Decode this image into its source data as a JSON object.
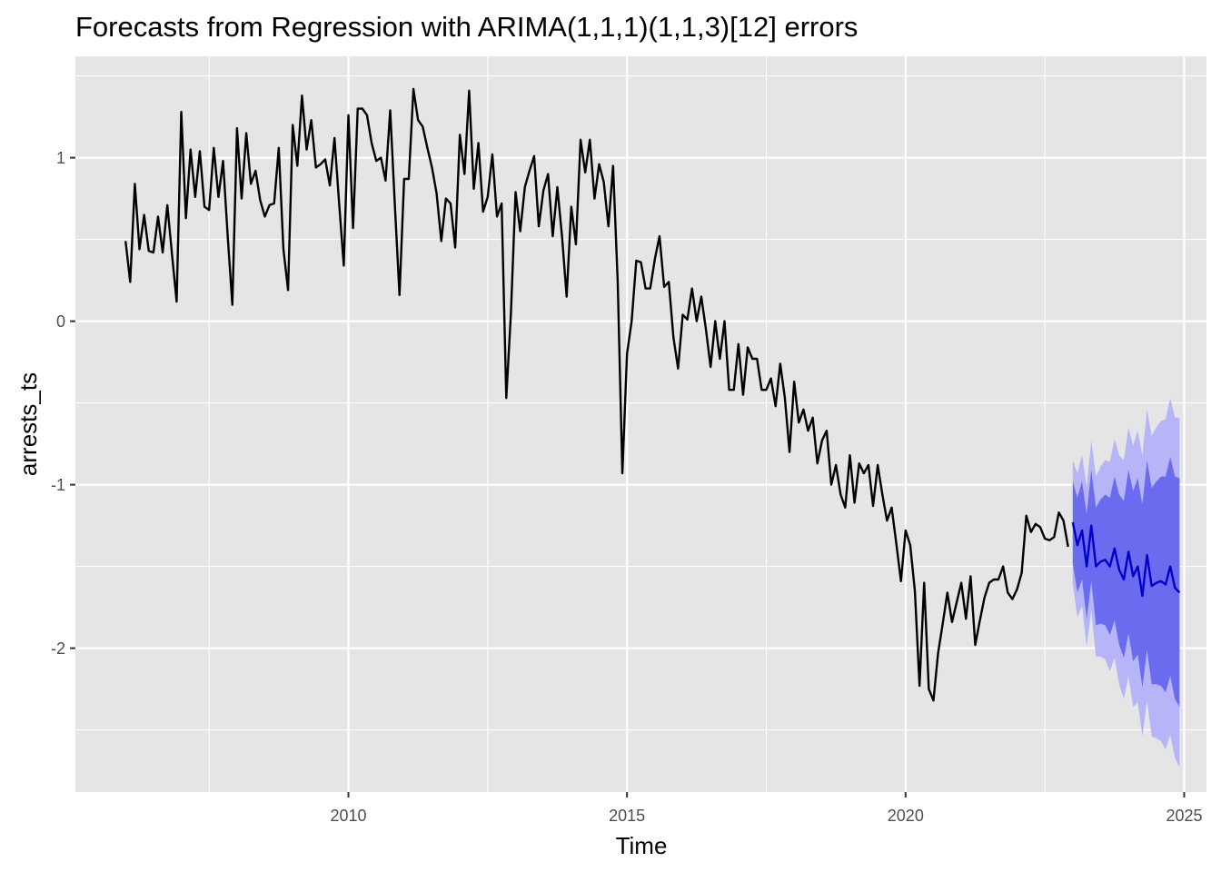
{
  "chart_data": {
    "type": "line",
    "title": "Forecasts from Regression with ARIMA(1,1,1)(1,1,3)[12] errors",
    "xlabel": "Time",
    "ylabel": "arrests_ts",
    "xlim": [
      2005.1,
      2025.4
    ],
    "ylim": [
      -2.88,
      1.62
    ],
    "x_ticks": [
      2010,
      2015,
      2020,
      2025
    ],
    "x_tick_labels": [
      "2010",
      "2015",
      "2020",
      "2025"
    ],
    "x_minor_ticks": [
      2007.5,
      2012.5,
      2017.5,
      2022.5
    ],
    "y_ticks": [
      1,
      0,
      -1,
      -2
    ],
    "y_tick_labels": [
      "1",
      "0",
      "-1",
      "-2"
    ],
    "y_minor_ticks": [
      1.5,
      0.5,
      -0.5,
      -1.5,
      -2.5
    ],
    "grid": true,
    "panel_background": "#e5e5e5",
    "grid_color": "#ffffff",
    "colors": {
      "history": "#000000",
      "forecast": "#0000cc",
      "interval_80": "#6b6bef",
      "interval_95": "#b5b5f7"
    },
    "start": 2006.0,
    "frequency": 12,
    "history": [
      0.49,
      0.24,
      0.84,
      0.44,
      0.65,
      0.43,
      0.42,
      0.64,
      0.42,
      0.71,
      0.41,
      0.12,
      1.28,
      0.63,
      1.05,
      0.76,
      1.04,
      0.7,
      0.68,
      1.06,
      0.76,
      0.98,
      0.52,
      0.1,
      1.18,
      0.75,
      1.15,
      0.84,
      0.92,
      0.74,
      0.64,
      0.71,
      0.72,
      1.06,
      0.44,
      0.19,
      1.2,
      0.95,
      1.38,
      1.05,
      1.23,
      0.94,
      0.96,
      0.99,
      0.83,
      1.12,
      0.72,
      0.34,
      1.26,
      0.57,
      1.3,
      1.3,
      1.26,
      1.09,
      0.98,
      1.0,
      0.86,
      1.29,
      0.71,
      0.16,
      0.87,
      0.87,
      1.42,
      1.23,
      1.19,
      1.06,
      0.94,
      0.78,
      0.49,
      0.75,
      0.72,
      0.45,
      1.14,
      0.9,
      1.41,
      0.81,
      1.09,
      0.67,
      0.76,
      1.02,
      0.64,
      0.72,
      -0.47,
      0.05,
      0.79,
      0.55,
      0.82,
      0.92,
      1.01,
      0.58,
      0.8,
      0.9,
      0.52,
      0.82,
      0.52,
      0.15,
      0.7,
      0.47,
      1.11,
      0.91,
      1.11,
      0.75,
      0.96,
      0.85,
      0.58,
      0.95,
      0.24,
      -0.93,
      -0.2,
      0.0,
      0.37,
      0.36,
      0.2,
      0.2,
      0.38,
      0.52,
      0.21,
      0.24,
      -0.1,
      -0.29,
      0.04,
      0.01,
      0.2,
      0.0,
      0.15,
      -0.05,
      -0.28,
      0.0,
      -0.23,
      0.0,
      -0.42,
      -0.42,
      -0.14,
      -0.45,
      -0.16,
      -0.23,
      -0.23,
      -0.42,
      -0.42,
      -0.35,
      -0.52,
      -0.26,
      -0.47,
      -0.8,
      -0.37,
      -0.62,
      -0.54,
      -0.67,
      -0.59,
      -0.87,
      -0.73,
      -0.67,
      -1.0,
      -0.88,
      -1.06,
      -1.14,
      -0.82,
      -1.11,
      -0.87,
      -0.93,
      -0.88,
      -1.13,
      -0.88,
      -1.06,
      -1.22,
      -1.14,
      -1.36,
      -1.59,
      -1.28,
      -1.37,
      -1.65,
      -2.23,
      -1.6,
      -2.25,
      -2.32,
      -2.03,
      -1.85,
      -1.66,
      -1.84,
      -1.72,
      -1.6,
      -1.82,
      -1.56,
      -1.98,
      -1.83,
      -1.69,
      -1.6,
      -1.58,
      -1.58,
      -1.5,
      -1.66,
      -1.7,
      -1.64,
      -1.54,
      -1.19,
      -1.29,
      -1.24,
      -1.26,
      -1.33,
      -1.34,
      -1.32,
      -1.17,
      -1.22,
      -1.38
    ],
    "forecast_start": 2023.0,
    "forecast": [
      -1.23,
      -1.37,
      -1.28,
      -1.5,
      -1.25,
      -1.5,
      -1.47,
      -1.46,
      -1.5,
      -1.39,
      -1.52,
      -1.58,
      -1.41,
      -1.56,
      -1.5,
      -1.68,
      -1.43,
      -1.62,
      -1.6,
      -1.59,
      -1.61,
      -1.5,
      -1.63,
      -1.66
    ],
    "lo80": [
      -1.48,
      -1.66,
      -1.58,
      -1.82,
      -1.59,
      -1.86,
      -1.85,
      -1.86,
      -1.92,
      -1.83,
      -1.98,
      -2.06,
      -1.91,
      -2.08,
      -2.04,
      -2.24,
      -2.01,
      -2.22,
      -2.22,
      -2.23,
      -2.27,
      -2.17,
      -2.31,
      -2.36
    ],
    "hi80": [
      -0.98,
      -1.08,
      -0.98,
      -1.18,
      -0.91,
      -1.14,
      -1.09,
      -1.06,
      -1.08,
      -0.95,
      -1.06,
      -1.1,
      -0.91,
      -1.04,
      -0.96,
      -1.12,
      -0.85,
      -1.02,
      -0.98,
      -0.95,
      -0.95,
      -0.83,
      -0.95,
      -0.96
    ],
    "lo95": [
      -1.61,
      -1.81,
      -1.74,
      -1.99,
      -1.77,
      -2.05,
      -2.05,
      -2.07,
      -2.14,
      -2.06,
      -2.22,
      -2.31,
      -2.17,
      -2.36,
      -2.33,
      -2.54,
      -2.32,
      -2.54,
      -2.55,
      -2.57,
      -2.62,
      -2.53,
      -2.67,
      -2.73
    ],
    "hi95": [
      -0.85,
      -0.93,
      -0.82,
      -1.01,
      -0.73,
      -0.95,
      -0.89,
      -0.85,
      -0.86,
      -0.72,
      -0.82,
      -0.85,
      -0.65,
      -0.76,
      -0.67,
      -0.82,
      -0.54,
      -0.7,
      -0.65,
      -0.61,
      -0.6,
      -0.47,
      -0.59,
      -0.59
    ]
  }
}
